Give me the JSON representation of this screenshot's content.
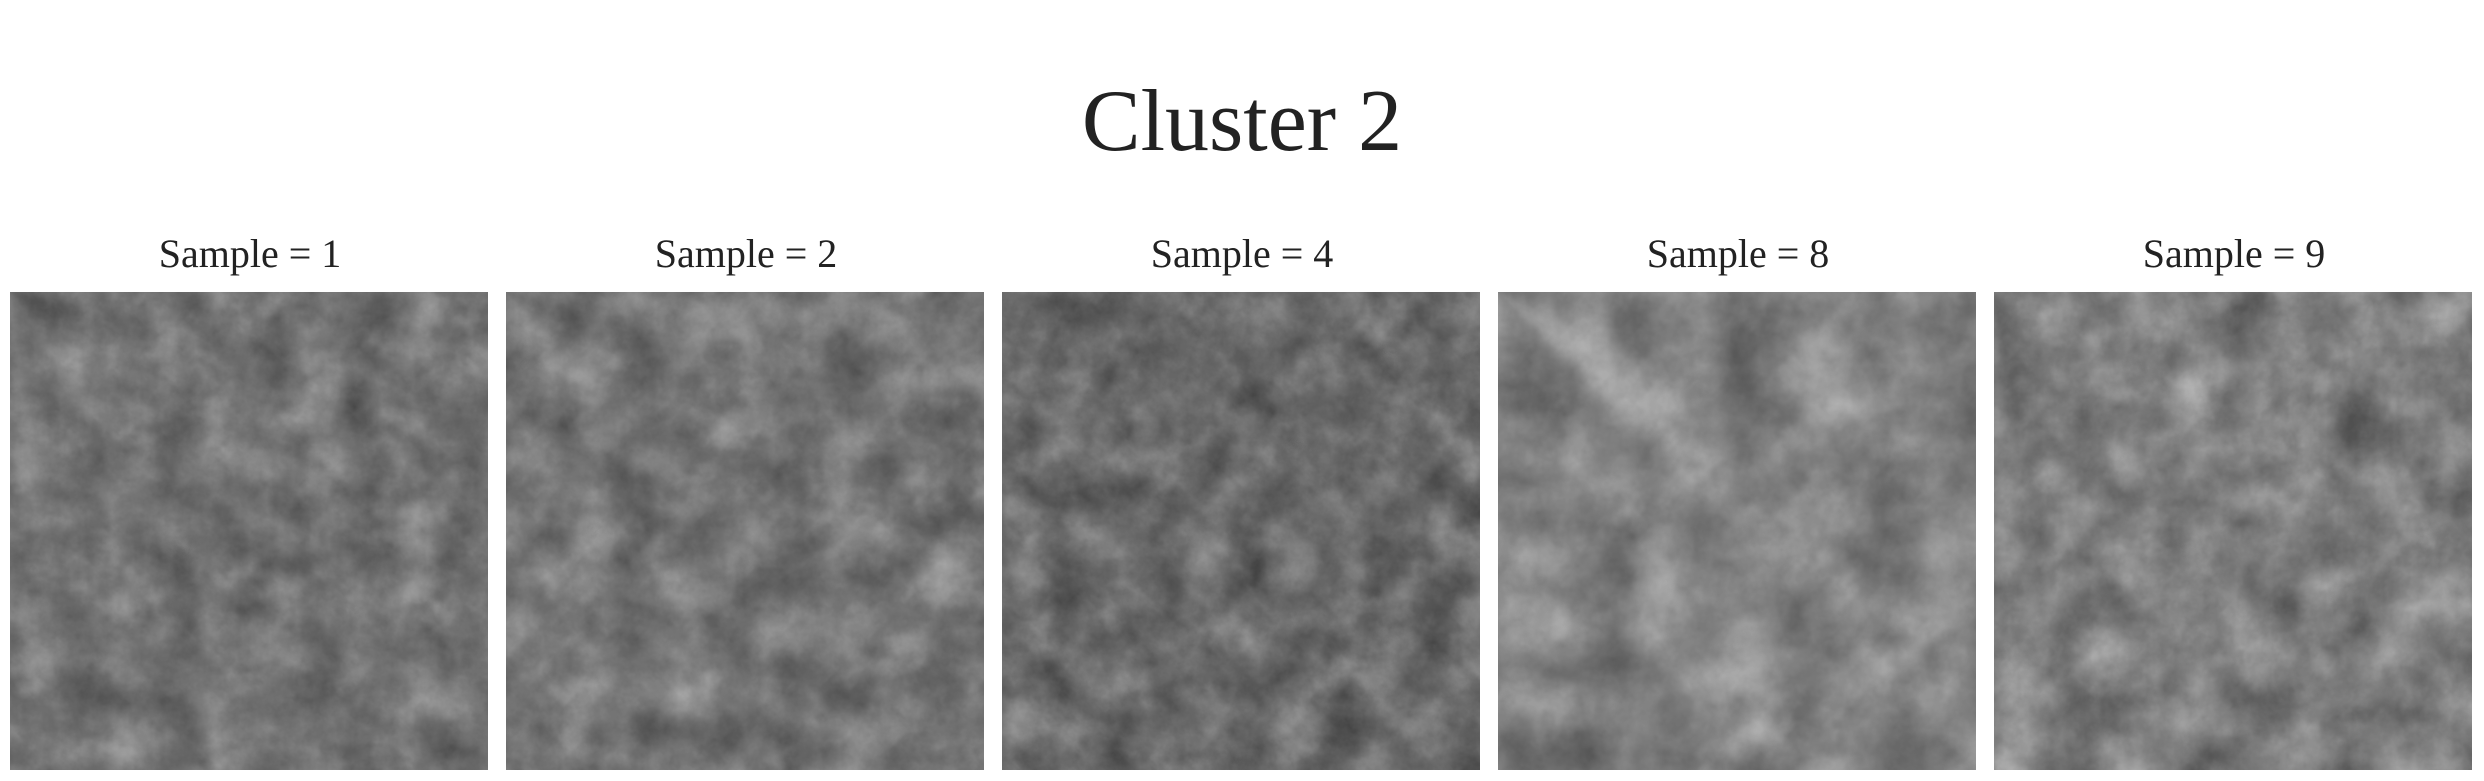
{
  "figure": {
    "title": "Cluster 2",
    "panels": [
      {
        "label": "Sample = 1",
        "image": "grayscale-turbulent-texture"
      },
      {
        "label": "Sample = 2",
        "image": "grayscale-turbulent-texture"
      },
      {
        "label": "Sample = 4",
        "image": "grayscale-turbulent-texture"
      },
      {
        "label": "Sample = 8",
        "image": "grayscale-turbulent-texture"
      },
      {
        "label": "Sample = 9",
        "image": "grayscale-turbulent-texture"
      }
    ]
  }
}
